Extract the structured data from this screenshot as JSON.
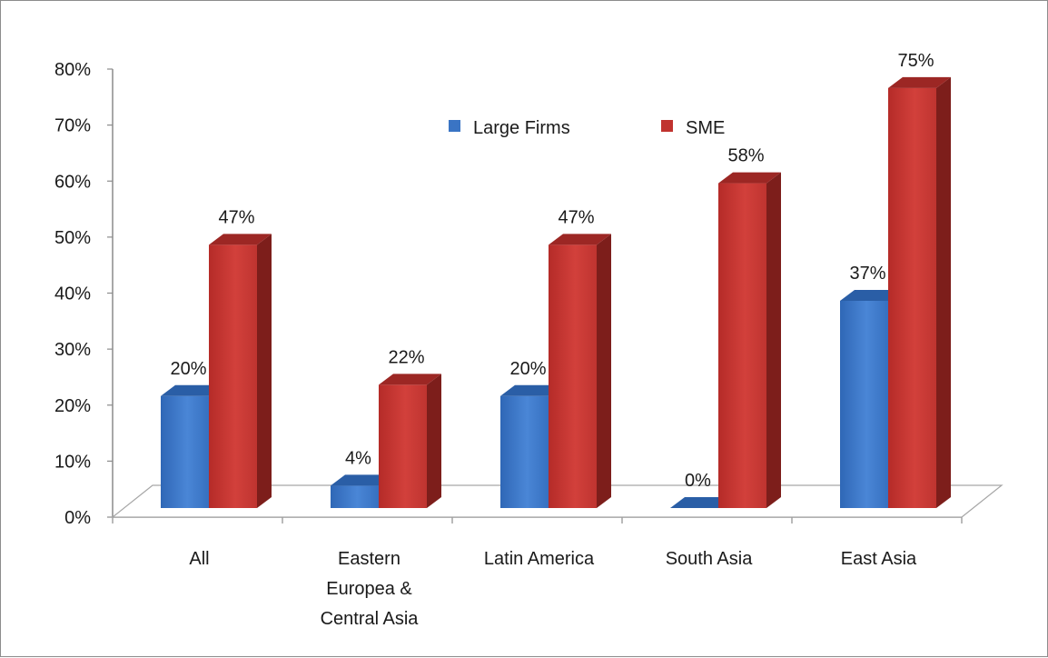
{
  "chart_data": {
    "type": "bar",
    "style": "3d-clustered-column",
    "categories": [
      "All",
      "Eastern Europea & Central Asia",
      "Latin America",
      "South Asia",
      "East Asia"
    ],
    "category_label_lines": [
      [
        "All"
      ],
      [
        "Eastern",
        "Europea &",
        "Central Asia"
      ],
      [
        "Latin America"
      ],
      [
        "South Asia"
      ],
      [
        "East Asia"
      ]
    ],
    "series": [
      {
        "name": "Large Firms",
        "values": [
          20,
          4,
          20,
          0,
          37
        ],
        "labels": [
          "20%",
          "4%",
          "20%",
          "0%",
          "37%"
        ],
        "color": "#3a74c4"
      },
      {
        "name": "SME",
        "values": [
          47,
          22,
          47,
          58,
          75
        ],
        "labels": [
          "47%",
          "22%",
          "47%",
          "58%",
          "75%"
        ],
        "color": "#c0332f"
      }
    ],
    "ylim": [
      0,
      80
    ],
    "y_ticks": [
      "0%",
      "10%",
      "20%",
      "30%",
      "40%",
      "50%",
      "60%",
      "70%",
      "80%"
    ],
    "legend_position": "top-center",
    "grid": false,
    "title": "",
    "xlabel": "",
    "ylabel": ""
  }
}
